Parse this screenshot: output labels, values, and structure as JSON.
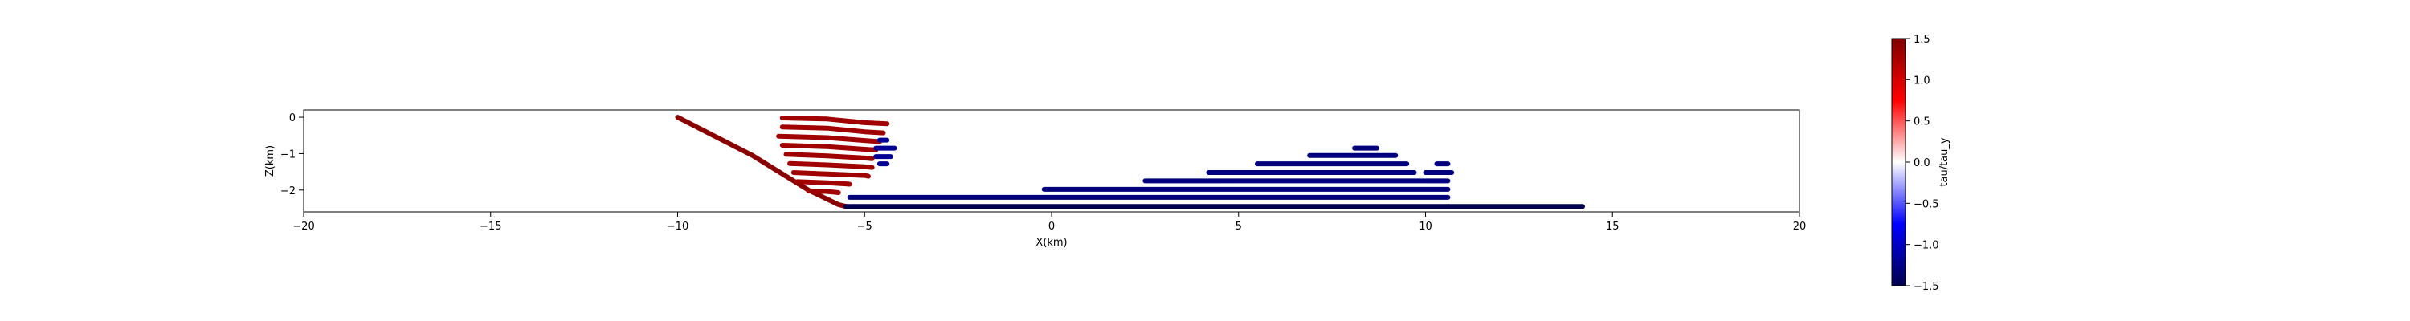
{
  "chart_data": {
    "type": "scatter",
    "xlabel": "X(km)",
    "ylabel": "Z(km)",
    "xlim": [
      -20,
      20
    ],
    "ylim": [
      -2.6,
      0.2
    ],
    "xticks": [
      -20,
      -15,
      -10,
      -5,
      0,
      5,
      10,
      15,
      20
    ],
    "yticks": [
      0,
      -1,
      -2
    ],
    "xtick_labels": [
      "−20",
      "−15",
      "−10",
      "−5",
      "0",
      "5",
      "10",
      "15",
      "20"
    ],
    "ytick_labels": [
      "0",
      "−1",
      "−2"
    ],
    "grid": false,
    "colormap": "seismic",
    "colorbar": {
      "label": "tau/tau_y",
      "range": [
        -1.5,
        1.5
      ],
      "ticks": [
        1.5,
        1.0,
        0.5,
        0.0,
        -0.5,
        -1.0,
        -1.5
      ],
      "tick_labels": [
        "1.5",
        "1.0",
        "0.5",
        "0.0",
        "−0.5",
        "−1.0",
        "−1.5"
      ],
      "colors": [
        "#00004c",
        "#0000ff",
        "#ffffff",
        "#ff0000",
        "#7f0000"
      ]
    },
    "series": [
      {
        "x": [
          -10.0,
          -8.0,
          -6.5,
          -5.7,
          -5.5
        ],
        "y": [
          0.0,
          -1.05,
          -2.0,
          -2.4,
          -2.45
        ],
        "value": 1.45
      },
      {
        "x": [
          -5.5,
          14.2
        ],
        "y": [
          -2.45,
          -2.45
        ],
        "value": -1.5
      },
      {
        "x": [
          -7.2,
          -6.0,
          -5.0,
          -4.4
        ],
        "y": [
          -0.02,
          -0.05,
          -0.15,
          -0.18
        ],
        "value": 1.3
      },
      {
        "x": [
          -7.2,
          -6.0,
          -5.0,
          -4.5
        ],
        "y": [
          -0.27,
          -0.3,
          -0.4,
          -0.43
        ],
        "value": 1.3
      },
      {
        "x": [
          -7.3,
          -6.0,
          -5.0,
          -4.6
        ],
        "y": [
          -0.52,
          -0.56,
          -0.64,
          -0.67
        ],
        "value": 1.3
      },
      {
        "x": [
          -7.2,
          -6.0,
          -5.0,
          -4.7
        ],
        "y": [
          -0.77,
          -0.81,
          -0.88,
          -0.9
        ],
        "value": 1.3
      },
      {
        "x": [
          -7.1,
          -6.0,
          -5.0,
          -4.8
        ],
        "y": [
          -1.02,
          -1.06,
          -1.12,
          -1.14
        ],
        "value": 1.3
      },
      {
        "x": [
          -7.0,
          -6.0,
          -5.0,
          -4.8
        ],
        "y": [
          -1.27,
          -1.31,
          -1.36,
          -1.38
        ],
        "value": 1.3
      },
      {
        "x": [
          -6.9,
          -6.0,
          -5.0,
          -4.9
        ],
        "y": [
          -1.52,
          -1.56,
          -1.6,
          -1.62
        ],
        "value": 1.3
      },
      {
        "x": [
          -6.8,
          -6.0,
          -5.5,
          -5.4
        ],
        "y": [
          -1.77,
          -1.8,
          -1.83,
          -1.84
        ],
        "value": 1.3
      },
      {
        "x": [
          -6.5,
          -6.0,
          -5.8,
          -5.7
        ],
        "y": [
          -2.02,
          -2.04,
          -2.06,
          -2.07
        ],
        "value": 1.3
      },
      {
        "x": [
          -4.6,
          -4.4
        ],
        "y": [
          -0.63,
          -0.63
        ],
        "value": -1.2
      },
      {
        "x": [
          -4.7,
          -4.2
        ],
        "y": [
          -0.85,
          -0.85
        ],
        "value": -1.2
      },
      {
        "x": [
          -4.7,
          -4.3
        ],
        "y": [
          -1.08,
          -1.08
        ],
        "value": -1.2
      },
      {
        "x": [
          -4.6,
          -4.4
        ],
        "y": [
          -1.28,
          -1.28
        ],
        "value": -1.2
      },
      {
        "x": [
          -5.4,
          10.6
        ],
        "y": [
          -2.2,
          -2.2
        ],
        "value": -1.3
      },
      {
        "x": [
          -0.2,
          10.6
        ],
        "y": [
          -1.98,
          -1.98
        ],
        "value": -1.3
      },
      {
        "x": [
          2.5,
          10.6
        ],
        "y": [
          -1.75,
          -1.75
        ],
        "value": -1.3
      },
      {
        "x": [
          4.2,
          9.7
        ],
        "y": [
          -1.52,
          -1.52
        ],
        "value": -1.3
      },
      {
        "x": [
          10.0,
          10.7
        ],
        "y": [
          -1.52,
          -1.52
        ],
        "value": -1.3
      },
      {
        "x": [
          5.5,
          9.5
        ],
        "y": [
          -1.28,
          -1.28
        ],
        "value": -1.3
      },
      {
        "x": [
          10.3,
          10.6
        ],
        "y": [
          -1.28,
          -1.28
        ],
        "value": -1.3
      },
      {
        "x": [
          6.9,
          9.2
        ],
        "y": [
          -1.05,
          -1.05
        ],
        "value": -1.3
      },
      {
        "x": [
          8.1,
          8.7
        ],
        "y": [
          -0.85,
          -0.85
        ],
        "value": -1.3
      }
    ]
  }
}
